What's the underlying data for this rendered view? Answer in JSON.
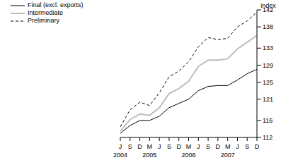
{
  "chart_data": {
    "type": "line",
    "y_label": "index",
    "categories": [
      "J",
      "S",
      "D",
      "M",
      "J",
      "S",
      "D",
      "M",
      "J",
      "S",
      "D",
      "M",
      "J",
      "S",
      "D"
    ],
    "groups": [
      "2004",
      null,
      null,
      "2005",
      null,
      null,
      null,
      "2006",
      null,
      null,
      null,
      "2007",
      null,
      null,
      null
    ],
    "series": [
      {
        "name": "Final (excl. exports)",
        "color": "#000000",
        "line_style": "solid",
        "values": [
          113,
          114.8,
          116,
          116,
          117,
          119,
          120,
          121,
          123,
          124,
          124.2,
          124.2,
          125.5,
          127,
          128
        ]
      },
      {
        "name": "Intermediate",
        "color": "#bdbdbd",
        "line_style": "solid",
        "values": [
          113.5,
          116.2,
          117.5,
          117.2,
          119,
          122.3,
          123.5,
          125.2,
          128.7,
          130.2,
          130.2,
          130.5,
          132.8,
          134.4,
          136
        ]
      },
      {
        "name": "Preliminary",
        "color": "#000000",
        "line_style": "dashed",
        "values": [
          114.5,
          118.5,
          120.3,
          119.5,
          122.5,
          126.3,
          127.6,
          129.8,
          133.3,
          135.5,
          135,
          135.3,
          138,
          139.4,
          141.5
        ]
      }
    ],
    "ylim": [
      112,
      142
    ],
    "yticks": [
      112,
      116,
      121,
      125,
      129,
      133,
      138,
      142
    ],
    "grid": false,
    "legend": "upper left"
  }
}
